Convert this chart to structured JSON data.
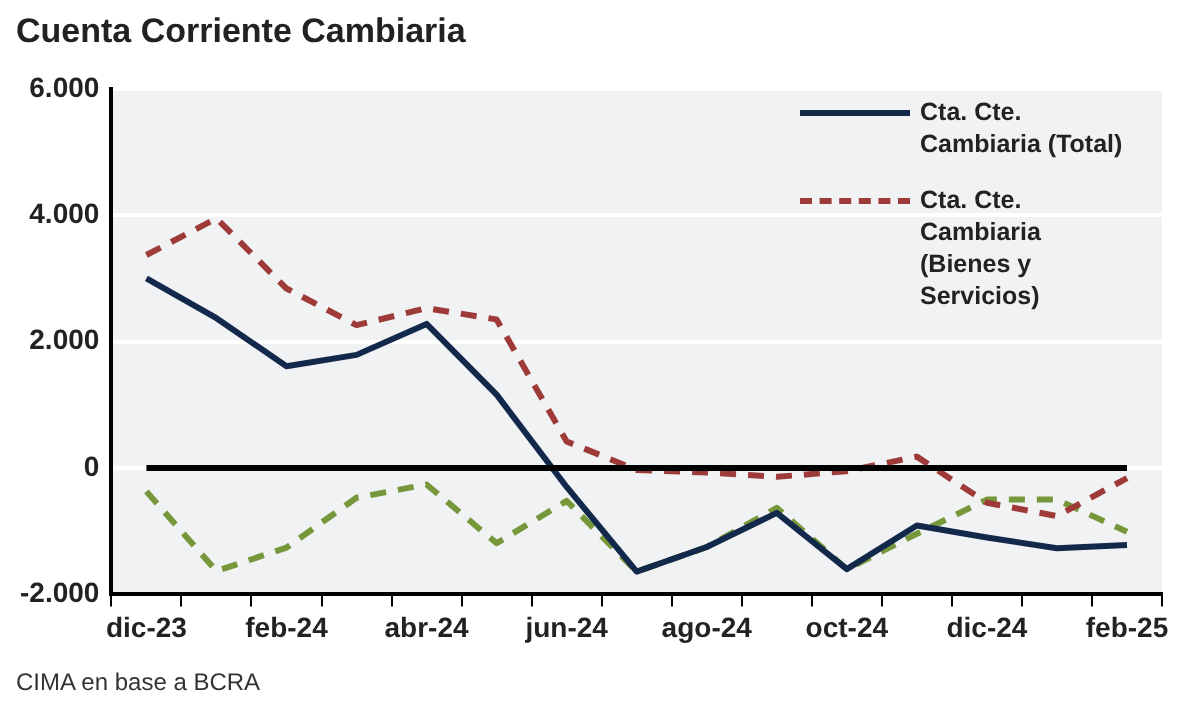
{
  "chart_data": {
    "type": "line",
    "title": "Cuenta Corriente Cambiaria",
    "categories": [
      "dic-23",
      null,
      "feb-24",
      null,
      "abr-24",
      null,
      "jun-24",
      null,
      "ago-24",
      null,
      "oct-24",
      null,
      "dic-24",
      null,
      "feb-25"
    ],
    "series": [
      {
        "name": "Cta. Cte. Cambiaria (Total)",
        "color": "#13294b",
        "line_style": "solid",
        "values": [
          3000,
          2370,
          1610,
          1790,
          2280,
          1160,
          -300,
          -1640,
          -1250,
          -710,
          -1600,
          -910,
          -1100,
          -1270,
          -1220
        ]
      },
      {
        "name": "Cta. Cte. Cambiaria (Bienes y Servicios)",
        "color": "#9e3a38",
        "line_style": "dashed",
        "values": [
          3370,
          3950,
          2840,
          2260,
          2530,
          2350,
          420,
          -30,
          -70,
          -140,
          -50,
          180,
          -550,
          -760,
          -160
        ]
      },
      {
        "color": "#76973a",
        "line_style": "dashed",
        "values": [
          -370,
          -1630,
          -1260,
          -470,
          -260,
          -1190,
          -520,
          -1640,
          -1250,
          -630,
          -1600,
          -1040,
          -500,
          -500,
          -1010
        ]
      }
    ],
    "ylim": [
      -2000,
      6000
    ],
    "yticks": [
      {
        "value": -2000,
        "label": "-2.000"
      },
      0,
      {
        "value": 2000,
        "label": "2.000"
      },
      {
        "value": 4000,
        "label": "4.000"
      },
      {
        "value": 6000,
        "label": "6.000"
      }
    ],
    "grid": "y",
    "legend": "top right",
    "marker": "none",
    "ref_lines": [
      {
        "axis": "y",
        "value": 0,
        "color": "#000000"
      }
    ],
    "annotations": [
      "CIMA en base a BCRA"
    ]
  }
}
